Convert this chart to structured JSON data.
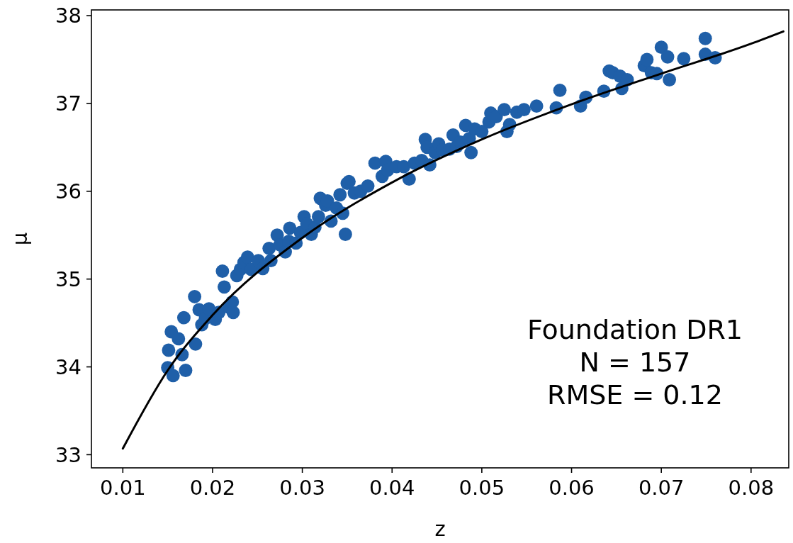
{
  "chart_data": {
    "type": "scatter",
    "xlabel": "z",
    "ylabel": "μ",
    "xlim": [
      0.0065,
      0.0842
    ],
    "ylim": [
      32.85,
      38.065
    ],
    "xticks": [
      {
        "value": 0.01,
        "label": "0.01"
      },
      {
        "value": 0.02,
        "label": "0.02"
      },
      {
        "value": 0.03,
        "label": "0.03"
      },
      {
        "value": 0.04,
        "label": "0.04"
      },
      {
        "value": 0.05,
        "label": "0.05"
      },
      {
        "value": 0.06,
        "label": "0.06"
      },
      {
        "value": 0.07,
        "label": "0.07"
      },
      {
        "value": 0.08,
        "label": "0.08"
      }
    ],
    "yticks": [
      33,
      34,
      35,
      36,
      37,
      38
    ],
    "grid": false,
    "annotations": [
      "Foundation DR1\nN = 157\nRMSE = 0.12"
    ],
    "series": [
      {
        "color": "#1f5fa8",
        "marker": "circle",
        "x": [
          0.015,
          0.0151,
          0.0154,
          0.0156,
          0.0162,
          0.0166,
          0.0168,
          0.017,
          0.0181,
          0.018,
          0.0185,
          0.0188,
          0.0192,
          0.0196,
          0.0203,
          0.0207,
          0.0211,
          0.0213,
          0.0218,
          0.0222,
          0.0223,
          0.0227,
          0.0231,
          0.0235,
          0.0239,
          0.0243,
          0.0251,
          0.0256,
          0.0263,
          0.0265,
          0.0272,
          0.0275,
          0.0281,
          0.0285,
          0.0286,
          0.0293,
          0.0298,
          0.0302,
          0.0305,
          0.031,
          0.0314,
          0.0318,
          0.032,
          0.0326,
          0.0328,
          0.0332,
          0.0338,
          0.0342,
          0.0345,
          0.0348,
          0.035,
          0.0352,
          0.0358,
          0.0365,
          0.0373,
          0.0381,
          0.0389,
          0.0393,
          0.0395,
          0.0405,
          0.0413,
          0.0419,
          0.0425,
          0.0433,
          0.0437,
          0.0439,
          0.0442,
          0.0448,
          0.0452,
          0.0456,
          0.0464,
          0.0468,
          0.0472,
          0.0476,
          0.0482,
          0.0486,
          0.0488,
          0.0492,
          0.05,
          0.0508,
          0.051,
          0.0516,
          0.0525,
          0.0528,
          0.0531,
          0.0539,
          0.0547,
          0.0561,
          0.0583,
          0.0587,
          0.061,
          0.0616,
          0.0636,
          0.0642,
          0.0646,
          0.0654,
          0.0656,
          0.0662,
          0.0681,
          0.0684,
          0.0689,
          0.0695,
          0.07,
          0.0707,
          0.0709,
          0.0725,
          0.0749,
          0.0749,
          0.076
        ],
        "values": [
          33.99,
          34.19,
          34.4,
          33.9,
          34.32,
          34.14,
          34.56,
          33.96,
          34.26,
          34.8,
          34.65,
          34.48,
          34.55,
          34.66,
          34.54,
          34.62,
          35.09,
          34.91,
          34.68,
          34.74,
          34.62,
          35.04,
          35.11,
          35.19,
          35.25,
          35.11,
          35.21,
          35.12,
          35.35,
          35.21,
          35.5,
          35.39,
          35.31,
          35.43,
          35.58,
          35.41,
          35.53,
          35.71,
          35.63,
          35.51,
          35.59,
          35.71,
          35.92,
          35.84,
          35.89,
          35.66,
          35.81,
          35.96,
          35.75,
          35.51,
          36.09,
          36.11,
          35.98,
          36.0,
          36.06,
          36.32,
          36.17,
          36.34,
          36.24,
          36.28,
          36.28,
          36.14,
          36.32,
          36.35,
          36.59,
          36.5,
          36.3,
          36.44,
          36.54,
          36.47,
          36.48,
          36.64,
          36.51,
          36.56,
          36.75,
          36.6,
          36.44,
          36.71,
          36.68,
          36.79,
          36.89,
          36.85,
          36.93,
          36.68,
          36.76,
          36.9,
          36.93,
          36.97,
          36.95,
          37.15,
          36.97,
          37.07,
          37.14,
          37.37,
          37.35,
          37.31,
          37.17,
          37.27,
          37.43,
          37.5,
          37.35,
          37.34,
          37.64,
          37.53,
          37.27,
          37.51,
          37.74,
          37.56,
          37.52
        ]
      },
      {
        "type": "line",
        "color": "#000000",
        "marker": "none",
        "x": [
          0.01,
          0.015,
          0.02,
          0.03,
          0.04,
          0.05,
          0.06,
          0.07,
          0.08,
          0.0836
        ],
        "values": [
          33.07,
          33.96,
          34.59,
          35.47,
          36.1,
          36.59,
          36.99,
          37.34,
          37.68,
          37.82
        ]
      }
    ]
  }
}
